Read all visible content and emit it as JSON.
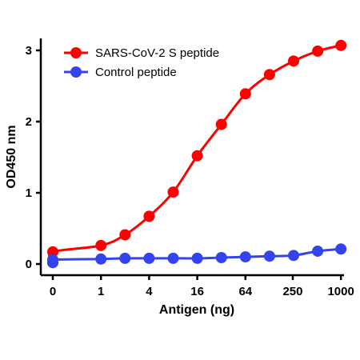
{
  "chart_data": {
    "type": "line",
    "title": "",
    "xlabel": "Antigen (ng)",
    "ylabel": "OD450 nm",
    "ylim": [
      0,
      3.1
    ],
    "y_ticks": [
      "0",
      "1",
      "2",
      "3"
    ],
    "x_ticks": [
      "0",
      "1",
      "4",
      "16",
      "64",
      "250",
      "1000"
    ],
    "legend_position": "top-left",
    "series": [
      {
        "name": "SARS-CoV-2 S peptide",
        "color": "#ff0000",
        "points": [
          {
            "x": 0,
            "y": 0.02
          },
          {
            "x": 0.25,
            "y": 0.17
          },
          {
            "x": 1,
            "y": 0.26
          },
          {
            "x": 2,
            "y": 0.41
          },
          {
            "x": 4,
            "y": 0.67
          },
          {
            "x": 8,
            "y": 1.01
          },
          {
            "x": 16,
            "y": 1.52
          },
          {
            "x": 32,
            "y": 1.96
          },
          {
            "x": 64,
            "y": 2.39
          },
          {
            "x": 128,
            "y": 2.66
          },
          {
            "x": 256,
            "y": 2.85
          },
          {
            "x": 512,
            "y": 2.99
          },
          {
            "x": 1000,
            "y": 3.07
          }
        ]
      },
      {
        "name": "Control peptide",
        "color": "#3344ee",
        "points": [
          {
            "x": 0,
            "y": 0.02
          },
          {
            "x": 0.25,
            "y": 0.06
          },
          {
            "x": 1,
            "y": 0.07
          },
          {
            "x": 2,
            "y": 0.08
          },
          {
            "x": 4,
            "y": 0.08
          },
          {
            "x": 8,
            "y": 0.08
          },
          {
            "x": 16,
            "y": 0.08
          },
          {
            "x": 32,
            "y": 0.09
          },
          {
            "x": 64,
            "y": 0.1
          },
          {
            "x": 128,
            "y": 0.11
          },
          {
            "x": 256,
            "y": 0.12
          },
          {
            "x": 512,
            "y": 0.18
          },
          {
            "x": 1000,
            "y": 0.21
          }
        ]
      }
    ]
  }
}
